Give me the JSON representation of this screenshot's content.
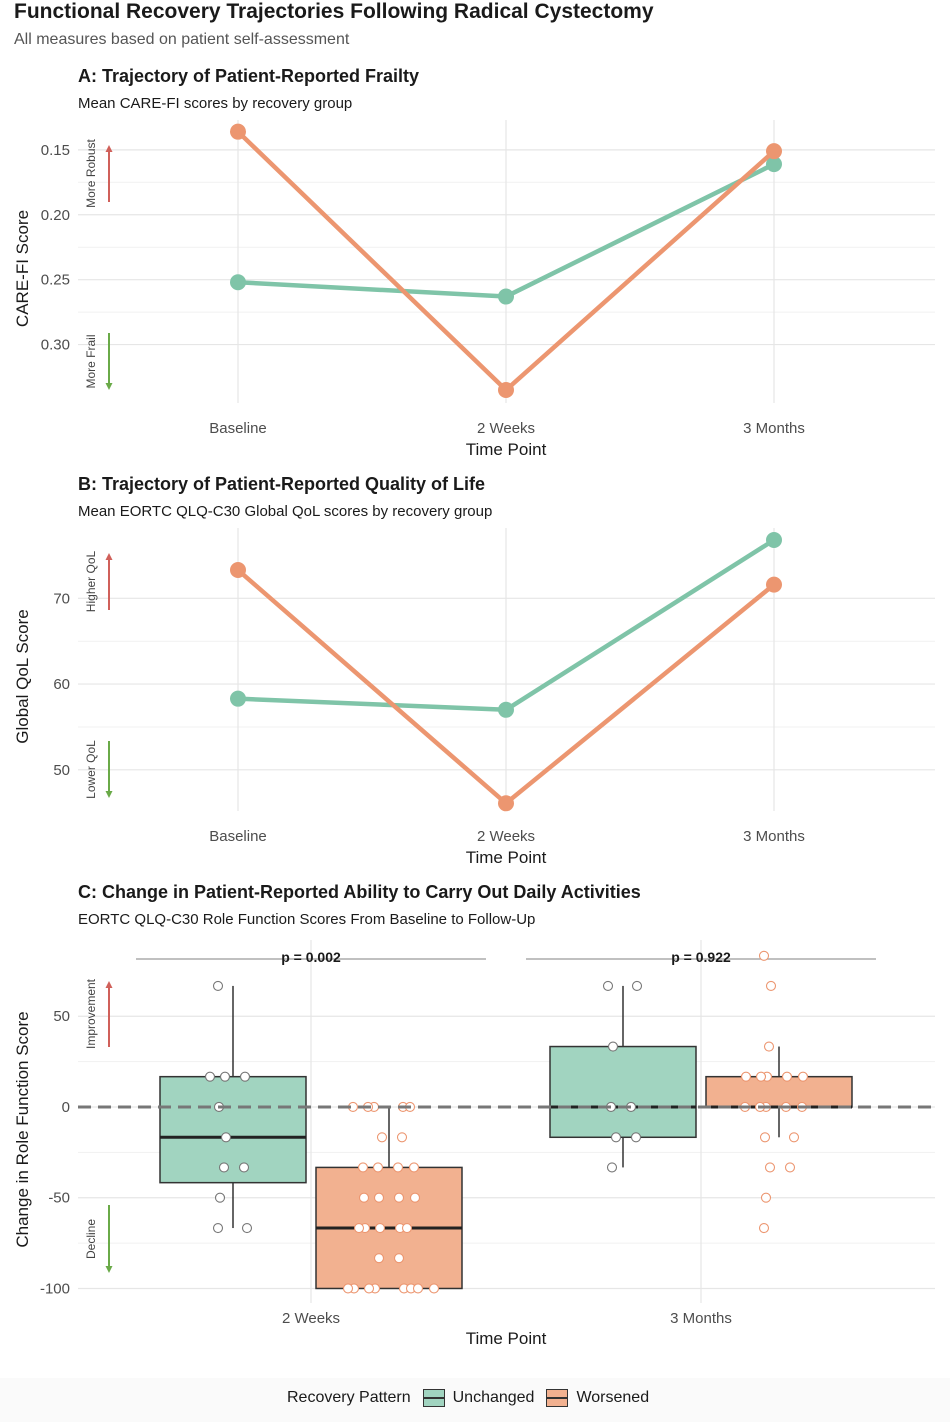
{
  "title": "Functional Recovery Trajectories Following Radical Cystectomy",
  "subtitle": "All measures based on patient self-assessment",
  "colors": {
    "unchanged": "#7fc4a8",
    "worsened": "#ec9670",
    "unchanged_fill": "#a1d4c0",
    "worsened_fill": "#f2b190",
    "up_arrow": "#d0605a",
    "down_arrow": "#6aaa48"
  },
  "legend": {
    "title": "Recovery Pattern",
    "items": [
      "Unchanged",
      "Worsened"
    ]
  },
  "chart_data": [
    {
      "type": "line",
      "panel_title": "A: Trajectory of Patient-Reported Frailty",
      "panel_subtitle": "Mean CARE-FI scores by recovery group",
      "xlabel": "Time Point",
      "ylabel": "CARE-FI Score",
      "categories": [
        "Baseline",
        "2 Weeks",
        "3 Months"
      ],
      "y_reversed": true,
      "ylim": [
        0.345,
        0.127
      ],
      "yticks": [
        0.15,
        0.2,
        0.25,
        0.3
      ],
      "ytick_labels": [
        "0.15",
        "0.20",
        "0.25",
        "0.30"
      ],
      "annot_up": "More Robust",
      "annot_down": "More Frail",
      "series": [
        {
          "name": "Unchanged",
          "values": [
            0.252,
            0.263,
            0.161
          ]
        },
        {
          "name": "Worsened",
          "values": [
            0.136,
            0.335,
            0.151
          ]
        }
      ]
    },
    {
      "type": "line",
      "panel_title": "B: Trajectory of Patient-Reported Quality of Life",
      "panel_subtitle": "Mean EORTC QLQ-C30 Global QoL scores by recovery group",
      "xlabel": "Time Point",
      "ylabel": "Global QoL Score",
      "categories": [
        "Baseline",
        "2 Weeks",
        "3 Months"
      ],
      "y_reversed": false,
      "ylim": [
        45.2,
        78.2
      ],
      "yticks": [
        50,
        60,
        70
      ],
      "ytick_labels": [
        "50",
        "60",
        "70"
      ],
      "annot_up": "Higher QoL",
      "annot_down": "Lower QoL",
      "series": [
        {
          "name": "Unchanged",
          "values": [
            58.3,
            57.0,
            76.8
          ]
        },
        {
          "name": "Worsened",
          "values": [
            73.3,
            46.1,
            71.6
          ]
        }
      ]
    },
    {
      "type": "box",
      "panel_title": "C: Change in Patient-Reported Ability to Carry Out Daily Activities",
      "panel_subtitle": "EORTC QLQ-C30 Role Function Scores From Baseline to Follow-Up",
      "xlabel": "Time Point",
      "ylabel": "Change in Role Function Score",
      "categories": [
        "2 Weeks",
        "3 Months"
      ],
      "ylim": [
        -108,
        92
      ],
      "yticks": [
        -100,
        -50,
        0,
        50
      ],
      "ytick_labels": [
        "-100",
        "-50",
        "0",
        "50"
      ],
      "reference_line": 0,
      "annot_up": "Improvement",
      "annot_down": "Decline",
      "pvalues": [
        "p = 0.002",
        "p = 0.922"
      ],
      "boxes": [
        {
          "category": "2 Weeks",
          "group": "Unchanged",
          "min": -66.7,
          "q1": -41.7,
          "median": -16.7,
          "q3": 16.7,
          "max": 66.7,
          "points": [
            66.7,
            16.7,
            16.7,
            16.7,
            0,
            -16.7,
            -33.3,
            -33.3,
            -50,
            -66.7,
            -66.7
          ]
        },
        {
          "category": "2 Weeks",
          "group": "Worsened",
          "min": -100,
          "q1": -100,
          "median": -66.7,
          "q3": -33.3,
          "max": 0,
          "points": [
            0,
            0,
            0,
            0,
            0,
            -16.7,
            -16.7,
            -33.3,
            -33.3,
            -33.3,
            -33.3,
            -50,
            -50,
            -50,
            -50,
            -66.7,
            -66.7,
            -66.7,
            -66.7,
            -66.7,
            -83.3,
            -83.3,
            -100,
            -100,
            -100,
            -100,
            -100,
            -100,
            -100,
            -100
          ]
        },
        {
          "category": "3 Months",
          "group": "Unchanged",
          "min": -33.3,
          "q1": -16.7,
          "median": 0,
          "q3": 33.3,
          "max": 66.7,
          "points": [
            66.7,
            66.7,
            33.3,
            0,
            0,
            -16.7,
            -16.7,
            -33.3
          ]
        },
        {
          "category": "3 Months",
          "group": "Worsened",
          "min": -16.7,
          "q1": 0,
          "median": 0,
          "q3": 16.7,
          "max": 33.3,
          "points": [
            83.3,
            66.7,
            33.3,
            16.7,
            16.7,
            16.7,
            16.7,
            16.7,
            0,
            0,
            0,
            0,
            0,
            -16.7,
            -16.7,
            -33.3,
            -33.3,
            -50,
            -66.7
          ]
        }
      ]
    }
  ]
}
